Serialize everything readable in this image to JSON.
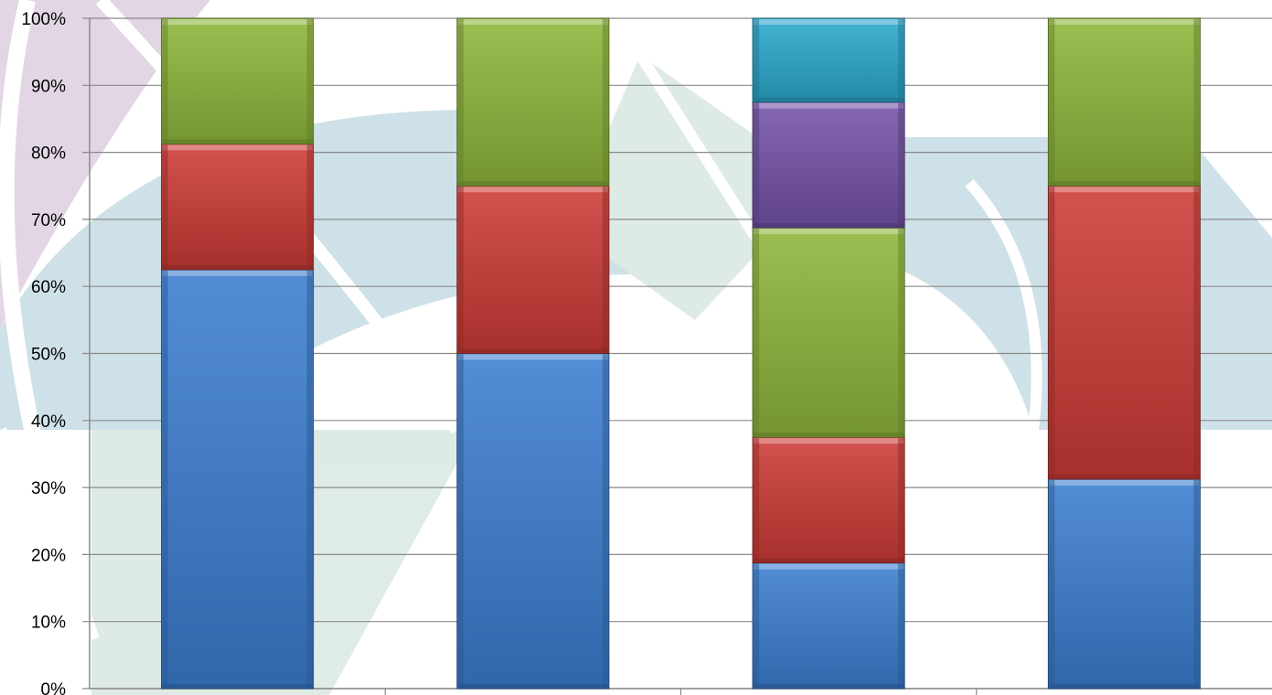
{
  "chart_data": {
    "type": "bar",
    "stacked": true,
    "normalized": true,
    "title": "",
    "xlabel": "",
    "ylabel": "",
    "ylim": [
      0,
      100
    ],
    "y_tick_labels": [
      "0%",
      "10%",
      "20%",
      "30%",
      "40%",
      "50%",
      "60%",
      "70%",
      "80%",
      "90%",
      "100%"
    ],
    "grid": true,
    "legend": "none",
    "categories": [
      "",
      "",
      "",
      ""
    ],
    "series": [
      {
        "color": "#3b7dd0",
        "values": [
          62.5,
          50,
          18.75,
          31.25
        ]
      },
      {
        "color": "#cc3a36",
        "values": [
          18.75,
          25,
          18.75,
          43.75
        ]
      },
      {
        "color": "#8db63a",
        "values": [
          18.75,
          25,
          31.25,
          25
        ]
      },
      {
        "color": "#7452a8",
        "values": [
          0,
          0,
          18.75,
          0
        ]
      },
      {
        "color": "#2aa8cc",
        "values": [
          0,
          0,
          12.5,
          0
        ]
      }
    ]
  }
}
